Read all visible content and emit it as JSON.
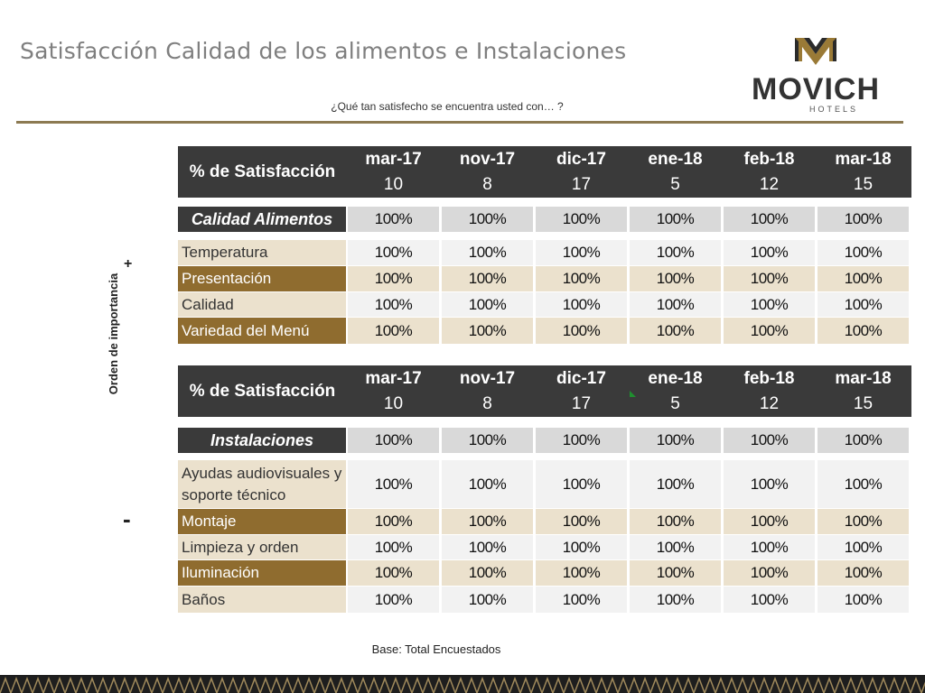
{
  "header": {
    "title": "Satisfacción Calidad de los alimentos e Instalaciones",
    "question": "¿Qué tan satisfecho se encuentra usted con… ?",
    "logo_text": "MOVICH",
    "logo_sub": "HOTELS"
  },
  "side": {
    "label": "Orden de importancia",
    "plus": "+",
    "minus": "-"
  },
  "colors": {
    "accent_gold": "#8f6c2f",
    "header_dark": "#3a3a3a",
    "rule": "#8c7a52"
  },
  "table1": {
    "header_label": "% de Satisfacción",
    "periods": [
      {
        "month": "mar-17",
        "n": "10"
      },
      {
        "month": "nov-17",
        "n": "8"
      },
      {
        "month": "dic-17",
        "n": "17"
      },
      {
        "month": "ene-18",
        "n": "5"
      },
      {
        "month": "feb-18",
        "n": "12"
      },
      {
        "month": "mar-18",
        "n": "15"
      }
    ],
    "section": "Calidad Alimentos",
    "summary": [
      "100%",
      "100%",
      "100%",
      "100%",
      "100%",
      "100%"
    ],
    "rows": [
      {
        "label": "Temperatura",
        "values": [
          "100%",
          "100%",
          "100%",
          "100%",
          "100%",
          "100%"
        ]
      },
      {
        "label": "Presentación",
        "values": [
          "100%",
          "100%",
          "100%",
          "100%",
          "100%",
          "100%"
        ]
      },
      {
        "label": "Calidad",
        "values": [
          "100%",
          "100%",
          "100%",
          "100%",
          "100%",
          "100%"
        ]
      },
      {
        "label": "Variedad del Menú",
        "values": [
          "100%",
          "100%",
          "100%",
          "100%",
          "100%",
          "100%"
        ]
      }
    ]
  },
  "table2": {
    "header_label": "% de Satisfacción",
    "periods": [
      {
        "month": "mar-17",
        "n": "10"
      },
      {
        "month": "nov-17",
        "n": "8"
      },
      {
        "month": "dic-17",
        "n": "17"
      },
      {
        "month": "ene-18",
        "n": "5"
      },
      {
        "month": "feb-18",
        "n": "12"
      },
      {
        "month": "mar-18",
        "n": "15"
      }
    ],
    "section": "Instalaciones",
    "summary": [
      "100%",
      "100%",
      "100%",
      "100%",
      "100%",
      "100%"
    ],
    "rows": [
      {
        "label": "Ayudas audiovisuales y soporte técnico",
        "values": [
          "100%",
          "100%",
          "100%",
          "100%",
          "100%",
          "100%"
        ]
      },
      {
        "label": "Montaje",
        "values": [
          "100%",
          "100%",
          "100%",
          "100%",
          "100%",
          "100%"
        ]
      },
      {
        "label": "Limpieza y orden",
        "values": [
          "100%",
          "100%",
          "100%",
          "100%",
          "100%",
          "100%"
        ]
      },
      {
        "label": "Iluminación",
        "values": [
          "100%",
          "100%",
          "100%",
          "100%",
          "100%",
          "100%"
        ]
      },
      {
        "label": "Baños",
        "values": [
          "100%",
          "100%",
          "100%",
          "100%",
          "100%",
          "100%"
        ]
      }
    ]
  },
  "footer": {
    "base": "Base: Total Encuestados"
  }
}
